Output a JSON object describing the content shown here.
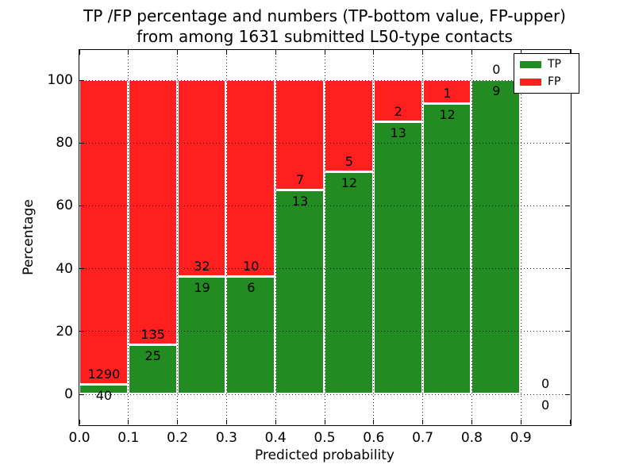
{
  "chart_data": {
    "type": "bar",
    "stacked": true,
    "normalized": "percent",
    "title_line1": "TP /FP percentage and numbers (TP-bottom value, FP-upper)",
    "title_line2": "from among 1631 submitted L50-type contacts",
    "xlabel": "Predicted probability",
    "ylabel": "Percentage",
    "xlim": [
      0.0,
      1.0
    ],
    "ylim": [
      -10,
      110
    ],
    "grid": "dotted",
    "bin_width": 0.1,
    "xticklabels": [
      "0.0",
      "0.1",
      "0.2",
      "0.3",
      "0.4",
      "0.5",
      "0.6",
      "0.7",
      "0.8",
      "0.9"
    ],
    "yticks": [
      0,
      20,
      40,
      60,
      80,
      100
    ],
    "bins": [
      "0.0-0.1",
      "0.1-0.2",
      "0.2-0.3",
      "0.3-0.4",
      "0.4-0.5",
      "0.5-0.6",
      "0.6-0.7",
      "0.7-0.8",
      "0.8-0.9",
      "0.9-1.0"
    ],
    "series": [
      {
        "name": "TP",
        "color": "#228b22",
        "values": [
          40,
          25,
          19,
          6,
          13,
          12,
          13,
          12,
          9,
          0
        ]
      },
      {
        "name": "FP",
        "color": "#ff1f1f",
        "values": [
          1290,
          135,
          32,
          10,
          7,
          5,
          2,
          1,
          0,
          0
        ]
      }
    ],
    "tp_percent_height": [
      3.01,
      15.63,
      37.25,
      37.5,
      65.0,
      70.59,
      86.67,
      92.31,
      100.0,
      null
    ],
    "legend": {
      "position": "upper right",
      "entries": [
        {
          "label": "TP",
          "color": "#228b22"
        },
        {
          "label": "FP",
          "color": "#ff1f1f"
        }
      ]
    }
  }
}
